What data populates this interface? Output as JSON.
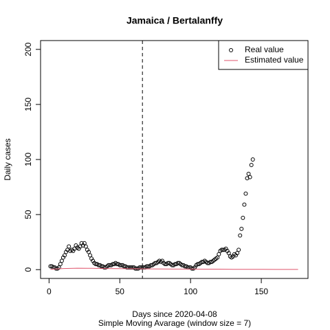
{
  "chart_data": {
    "type": "scatter",
    "title": "Jamaica / Bertalanffy",
    "xlabel": "Days since 2020-04-08",
    "subtitle": "Simple Moving Avarage (window size = 7)",
    "ylabel": "Daily cases",
    "xlim": [
      -6,
      183
    ],
    "ylim": [
      -8,
      208
    ],
    "xticks": [
      0,
      50,
      100,
      150
    ],
    "yticks": [
      0,
      50,
      100,
      150,
      200
    ],
    "vline": 66,
    "legend": "topright",
    "series": [
      {
        "name": "Real value",
        "color": "#000000",
        "marker": "circle",
        "x": [
          1,
          2,
          3,
          4,
          5,
          6,
          7,
          8,
          9,
          10,
          11,
          12,
          13,
          14,
          15,
          16,
          17,
          18,
          19,
          20,
          21,
          22,
          23,
          24,
          25,
          26,
          27,
          28,
          29,
          30,
          31,
          32,
          33,
          34,
          35,
          36,
          37,
          38,
          39,
          40,
          41,
          42,
          43,
          44,
          45,
          46,
          47,
          48,
          49,
          50,
          51,
          52,
          53,
          54,
          55,
          56,
          57,
          58,
          59,
          60,
          61,
          62,
          63,
          64,
          65,
          66,
          67,
          68,
          69,
          70,
          71,
          72,
          73,
          74,
          75,
          76,
          77,
          78,
          79,
          80,
          81,
          82,
          83,
          84,
          85,
          86,
          87,
          88,
          89,
          90,
          91,
          92,
          93,
          94,
          95,
          96,
          97,
          98,
          99,
          100,
          101,
          102,
          103,
          104,
          105,
          106,
          107,
          108,
          109,
          110,
          111,
          112,
          113,
          114,
          115,
          116,
          117,
          118,
          119,
          120,
          121,
          122,
          123,
          124,
          125,
          126,
          127,
          128,
          129,
          130,
          131,
          132,
          133,
          134,
          135,
          136,
          137,
          138,
          139,
          140,
          141,
          142,
          143,
          144
        ],
        "values": [
          3,
          3,
          2,
          2,
          1,
          1,
          2,
          5,
          8,
          11,
          13,
          16,
          18,
          21,
          17,
          18,
          17,
          19,
          22,
          20,
          19,
          21,
          24,
          22,
          24,
          21,
          18,
          16,
          13,
          10,
          8,
          6,
          5,
          5,
          4,
          4,
          3,
          3,
          2,
          2,
          3,
          4,
          4,
          4,
          5,
          5,
          6,
          5,
          5,
          4,
          4,
          4,
          3,
          3,
          2,
          2,
          2,
          2,
          2,
          2,
          1,
          1,
          1,
          2,
          2,
          2,
          2,
          2,
          3,
          3,
          3,
          4,
          4,
          5,
          6,
          6,
          7,
          8,
          7,
          8,
          6,
          5,
          5,
          6,
          6,
          5,
          4,
          4,
          5,
          5,
          6,
          6,
          5,
          4,
          4,
          3,
          3,
          2,
          2,
          2,
          1,
          1,
          2,
          4,
          5,
          5,
          6,
          7,
          7,
          8,
          7,
          6,
          6,
          7,
          7,
          8,
          9,
          10,
          11,
          14,
          17,
          18,
          18,
          18,
          19,
          17,
          15,
          12,
          11,
          12,
          14,
          13,
          15,
          18,
          31,
          37,
          47,
          59,
          69,
          83,
          87,
          84,
          95,
          100
        ]
      },
      {
        "name": "Estimated value",
        "color": "#DF536B",
        "marker": "line",
        "x": [
          1,
          10,
          20,
          30,
          40,
          50,
          60,
          70,
          80,
          90,
          100,
          110,
          120,
          130,
          140,
          150,
          160,
          170,
          176
        ],
        "values": [
          0.3,
          1,
          1.3,
          1.2,
          1,
          0.9,
          0.8,
          0.7,
          0.6,
          0.5,
          0.5,
          0.4,
          0.4,
          0.3,
          0.3,
          0.3,
          0.2,
          0.2,
          0.2
        ]
      }
    ]
  }
}
